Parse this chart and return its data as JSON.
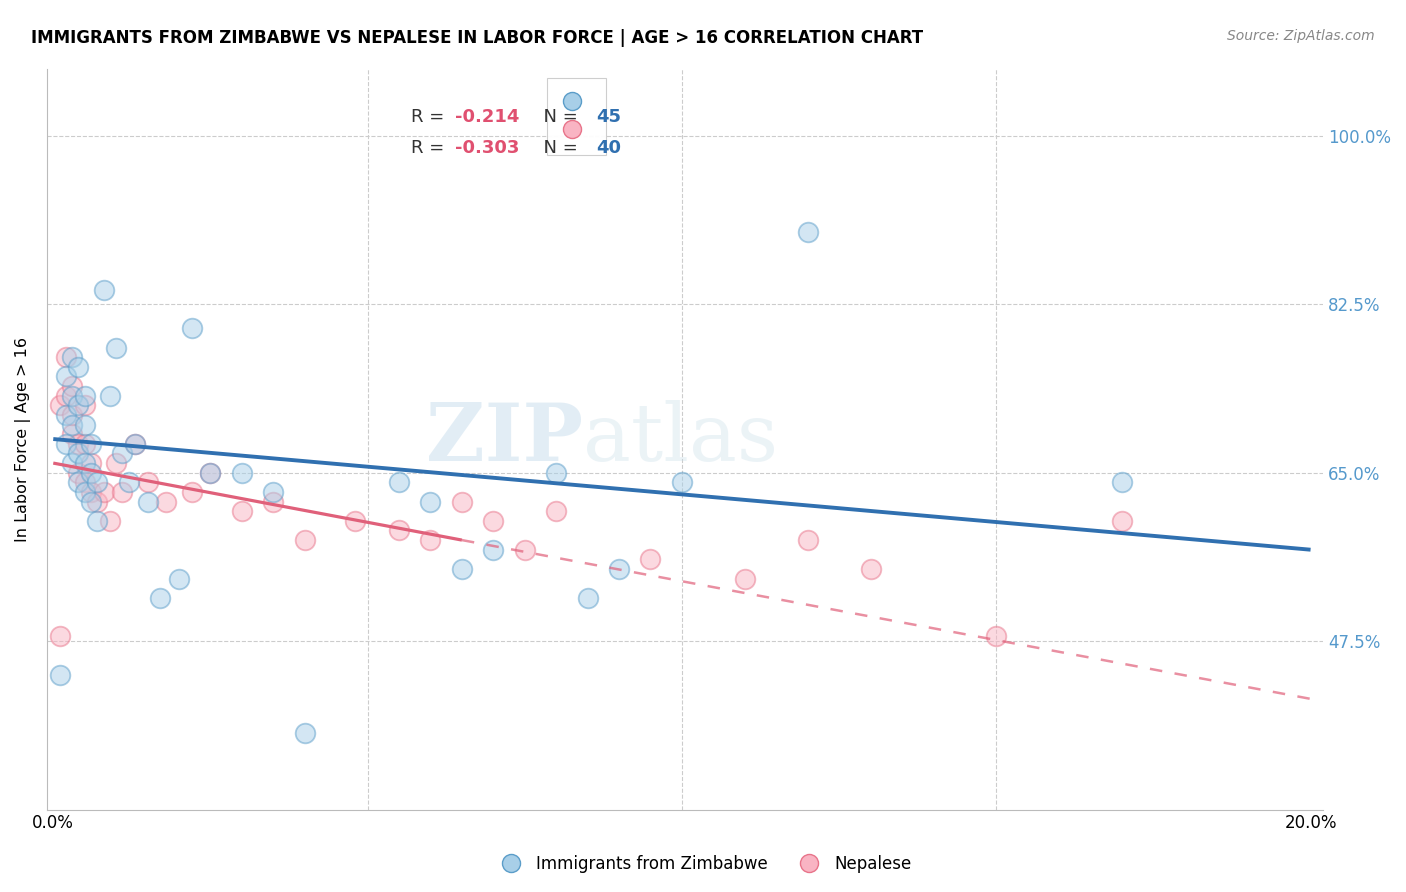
{
  "title": "IMMIGRANTS FROM ZIMBABWE VS NEPALESE IN LABOR FORCE | AGE > 16 CORRELATION CHART",
  "source": "Source: ZipAtlas.com",
  "ylabel": "In Labor Force | Age > 16",
  "ytick_values": [
    0.475,
    0.65,
    0.825,
    1.0
  ],
  "ytick_labels": [
    "47.5%",
    "65.0%",
    "82.5%",
    "100.0%"
  ],
  "xlim": [
    -0.001,
    0.202
  ],
  "ylim": [
    0.3,
    1.07
  ],
  "x_left_label": "0.0%",
  "x_right_label": "20.0%",
  "legend1_r": "-0.214",
  "legend1_n": "45",
  "legend2_r": "-0.303",
  "legend2_n": "40",
  "color_blue_face": "#a8cfe8",
  "color_blue_edge": "#5b9dc9",
  "color_pink_face": "#f9b4c3",
  "color_pink_edge": "#e8748a",
  "color_trendline_blue": "#3070b0",
  "color_trendline_pink": "#e0607a",
  "watermark": "ZIPatlas",
  "zimbabwe_x": [
    0.001,
    0.002,
    0.002,
    0.002,
    0.003,
    0.003,
    0.003,
    0.003,
    0.004,
    0.004,
    0.004,
    0.004,
    0.005,
    0.005,
    0.005,
    0.005,
    0.006,
    0.006,
    0.006,
    0.007,
    0.007,
    0.008,
    0.009,
    0.01,
    0.011,
    0.012,
    0.013,
    0.015,
    0.017,
    0.02,
    0.022,
    0.025,
    0.03,
    0.035,
    0.04,
    0.055,
    0.06,
    0.065,
    0.07,
    0.08,
    0.085,
    0.09,
    0.1,
    0.12,
    0.17
  ],
  "zimbabwe_y": [
    0.44,
    0.68,
    0.71,
    0.75,
    0.66,
    0.7,
    0.73,
    0.77,
    0.64,
    0.67,
    0.72,
    0.76,
    0.63,
    0.66,
    0.7,
    0.73,
    0.62,
    0.65,
    0.68,
    0.6,
    0.64,
    0.84,
    0.73,
    0.78,
    0.67,
    0.64,
    0.68,
    0.62,
    0.52,
    0.54,
    0.8,
    0.65,
    0.65,
    0.63,
    0.38,
    0.64,
    0.62,
    0.55,
    0.57,
    0.65,
    0.52,
    0.55,
    0.64,
    0.9,
    0.64
  ],
  "nepalese_x": [
    0.001,
    0.001,
    0.002,
    0.002,
    0.003,
    0.003,
    0.003,
    0.004,
    0.004,
    0.005,
    0.005,
    0.005,
    0.006,
    0.006,
    0.007,
    0.008,
    0.009,
    0.01,
    0.011,
    0.013,
    0.015,
    0.018,
    0.022,
    0.025,
    0.03,
    0.035,
    0.04,
    0.048,
    0.055,
    0.06,
    0.065,
    0.07,
    0.075,
    0.08,
    0.095,
    0.11,
    0.12,
    0.13,
    0.15,
    0.17
  ],
  "nepalese_y": [
    0.48,
    0.72,
    0.73,
    0.77,
    0.69,
    0.71,
    0.74,
    0.65,
    0.68,
    0.64,
    0.68,
    0.72,
    0.63,
    0.66,
    0.62,
    0.63,
    0.6,
    0.66,
    0.63,
    0.68,
    0.64,
    0.62,
    0.63,
    0.65,
    0.61,
    0.62,
    0.58,
    0.6,
    0.59,
    0.58,
    0.62,
    0.6,
    0.57,
    0.61,
    0.56,
    0.54,
    0.58,
    0.55,
    0.48,
    0.6
  ],
  "trendline_blue_x0": 0.0,
  "trendline_blue_x1": 0.2,
  "trendline_blue_y0": 0.685,
  "trendline_blue_y1": 0.57,
  "trendline_pink_solid_x0": 0.0,
  "trendline_pink_solid_x1": 0.065,
  "trendline_pink_y0": 0.66,
  "trendline_pink_y1": 0.58,
  "trendline_pink_dash_x0": 0.065,
  "trendline_pink_dash_x1": 0.2,
  "trendline_pink_dash_y0": 0.58,
  "trendline_pink_dash_y1": 0.415
}
